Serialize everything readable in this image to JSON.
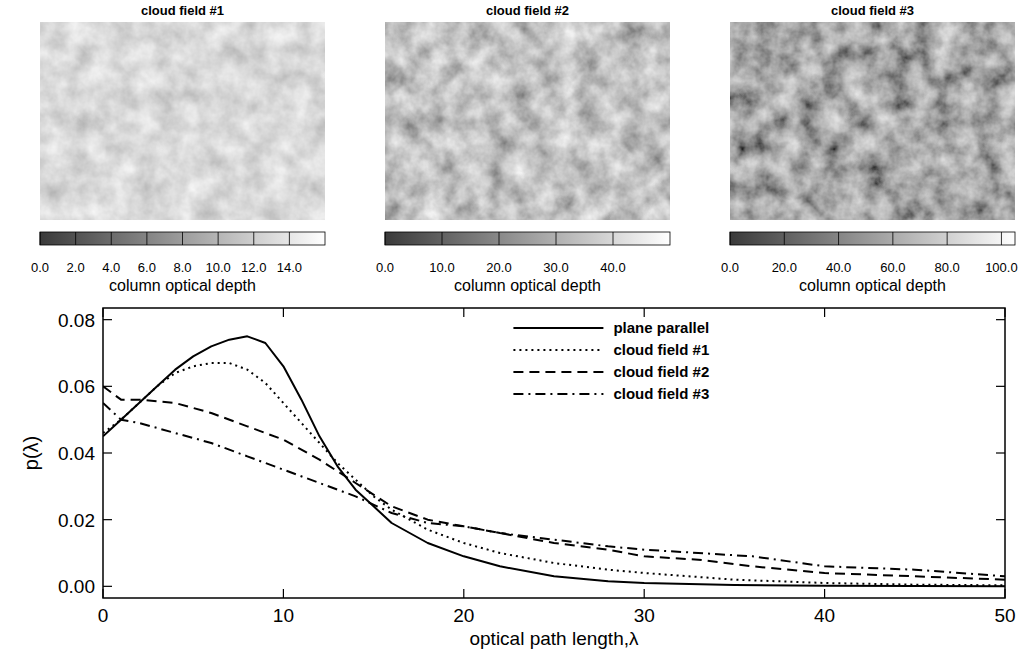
{
  "chart_data": [
    {
      "type": "image",
      "title": "cloud field #1",
      "colorbar": {
        "label": "column optical depth",
        "range": [
          0,
          16
        ],
        "ticks": [
          {
            "value": 0,
            "label": "0.0"
          },
          {
            "value": 2,
            "label": "2.0"
          },
          {
            "value": 4,
            "label": "4.0"
          },
          {
            "value": 6,
            "label": "6.0"
          },
          {
            "value": 8,
            "label": "8.0"
          },
          {
            "value": 10,
            "label": "10.0"
          },
          {
            "value": 12,
            "label": "12.0"
          },
          {
            "value": 14,
            "label": "14.0"
          }
        ]
      }
    },
    {
      "type": "image",
      "title": "cloud field #2",
      "colorbar": {
        "label": "column optical depth",
        "range": [
          0,
          50
        ],
        "ticks": [
          {
            "value": 0,
            "label": "0.0"
          },
          {
            "value": 10,
            "label": "10.0"
          },
          {
            "value": 20,
            "label": "20.0"
          },
          {
            "value": 30,
            "label": "30.0"
          },
          {
            "value": 40,
            "label": "40.0"
          }
        ]
      }
    },
    {
      "type": "image",
      "title": "cloud field #3",
      "colorbar": {
        "label": "column optical depth",
        "range": [
          0,
          105
        ],
        "ticks": [
          {
            "value": 0,
            "label": "0.0"
          },
          {
            "value": 20,
            "label": "20.0"
          },
          {
            "value": 40,
            "label": "40.0"
          },
          {
            "value": 60,
            "label": "60.0"
          },
          {
            "value": 80,
            "label": "80.0"
          },
          {
            "value": 100,
            "label": "100.0"
          }
        ]
      }
    },
    {
      "type": "line",
      "x_label": "optical path length,λ",
      "y_label": "p(λ)",
      "xlim": [
        0,
        50
      ],
      "xticks": [
        0,
        10,
        20,
        30,
        40,
        50
      ],
      "ylim": [
        -0.0035,
        0.0835
      ],
      "yticks": [
        {
          "value": 0,
          "label": "0.00"
        },
        {
          "value": 0.02,
          "label": "0.02"
        },
        {
          "value": 0.04,
          "label": "0.04"
        },
        {
          "value": 0.06,
          "label": "0.06"
        },
        {
          "value": 0.08,
          "label": "0.08"
        }
      ],
      "grid": false,
      "legend": "upper right",
      "series": [
        {
          "name": "plane parallel",
          "color": "#000000",
          "line_style": "solid",
          "x": [
            0,
            1,
            2,
            3,
            4,
            5,
            6,
            7,
            8,
            9,
            10,
            11,
            12,
            13,
            14,
            15,
            16,
            18,
            20,
            22,
            25,
            28,
            30,
            35,
            40,
            45,
            50
          ],
          "values": [
            0.045,
            0.05,
            0.055,
            0.06,
            0.065,
            0.069,
            0.072,
            0.074,
            0.075,
            0.073,
            0.066,
            0.056,
            0.045,
            0.036,
            0.029,
            0.024,
            0.019,
            0.013,
            0.009,
            0.006,
            0.003,
            0.0015,
            0.001,
            0.0004,
            0.0002,
            0.0001,
            0.0
          ]
        },
        {
          "name": "cloud field #1",
          "color": "#000000",
          "line_style": "dotted",
          "x": [
            0,
            1,
            2,
            3,
            4,
            5,
            6,
            7,
            8,
            9,
            10,
            11,
            12,
            13,
            14,
            15,
            16,
            18,
            20,
            22,
            25,
            28,
            30,
            35,
            40,
            45,
            50
          ],
          "values": [
            0.046,
            0.05,
            0.055,
            0.06,
            0.064,
            0.066,
            0.067,
            0.067,
            0.065,
            0.061,
            0.055,
            0.049,
            0.043,
            0.037,
            0.032,
            0.027,
            0.023,
            0.017,
            0.013,
            0.01,
            0.007,
            0.005,
            0.004,
            0.002,
            0.001,
            0.0005,
            0.0003
          ]
        },
        {
          "name": "cloud field #2",
          "color": "#000000",
          "line_style": "dashed",
          "x": [
            0,
            1,
            2,
            4,
            6,
            8,
            10,
            12,
            14,
            16,
            18,
            20,
            22,
            25,
            28,
            30,
            33,
            36,
            40,
            45,
            50
          ],
          "values": [
            0.06,
            0.056,
            0.056,
            0.055,
            0.052,
            0.048,
            0.044,
            0.038,
            0.031,
            0.024,
            0.02,
            0.018,
            0.016,
            0.013,
            0.011,
            0.009,
            0.008,
            0.006,
            0.004,
            0.003,
            0.002
          ]
        },
        {
          "name": "cloud field #3",
          "color": "#000000",
          "line_style": "dashdot",
          "x": [
            0,
            1,
            2,
            4,
            6,
            8,
            10,
            12,
            14,
            16,
            18,
            20,
            22,
            25,
            28,
            30,
            33,
            36,
            40,
            45,
            50
          ],
          "values": [
            0.055,
            0.05,
            0.049,
            0.046,
            0.043,
            0.039,
            0.035,
            0.031,
            0.027,
            0.022,
            0.019,
            0.018,
            0.016,
            0.014,
            0.012,
            0.011,
            0.01,
            0.009,
            0.006,
            0.005,
            0.003
          ]
        }
      ]
    }
  ]
}
